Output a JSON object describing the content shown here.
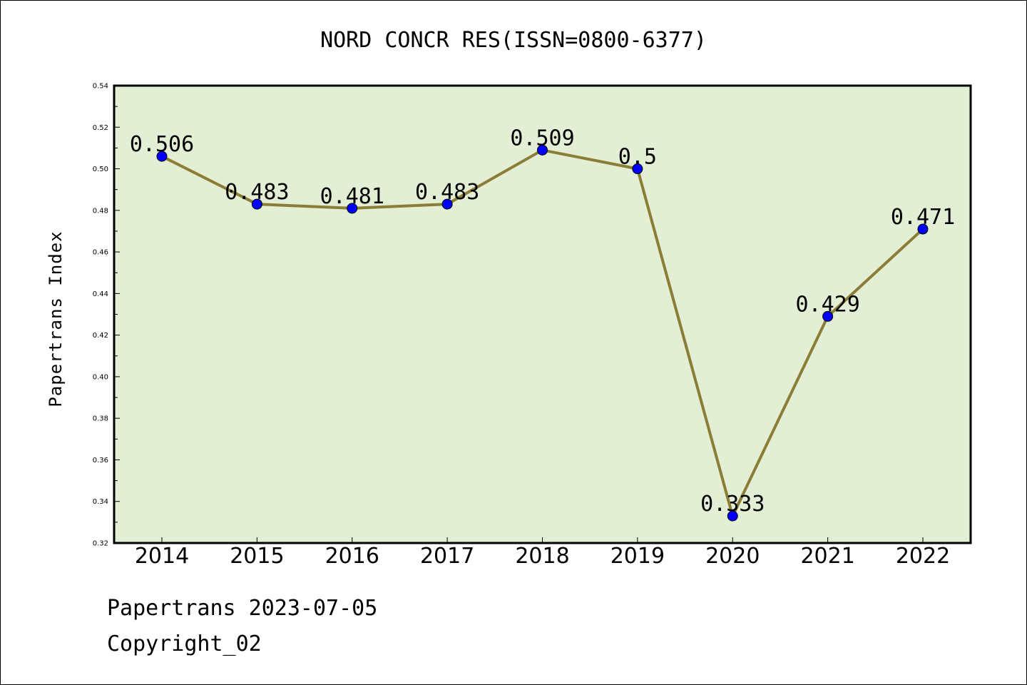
{
  "chart_data": {
    "type": "line",
    "title": "NORD CONCR RES(ISSN=0800-6377)",
    "xlabel": "",
    "ylabel": "Papertrans Index",
    "categories": [
      "2014",
      "2015",
      "2016",
      "2017",
      "2018",
      "2019",
      "2020",
      "2021",
      "2022"
    ],
    "series": [
      {
        "values": [
          0.506,
          0.483,
          0.481,
          0.483,
          0.509,
          0.5,
          0.333,
          0.429,
          0.471
        ]
      }
    ],
    "data_labels": [
      "0.506",
      "0.483",
      "0.481",
      "0.483",
      "0.509",
      "0.5",
      "0.333",
      "0.429",
      "0.471"
    ],
    "ylim": [
      0.32,
      0.54
    ],
    "yticks": [
      "0.32",
      "0.34",
      "0.36",
      "0.38",
      "0.40",
      "0.42",
      "0.44",
      "0.46",
      "0.48",
      "0.50",
      "0.52",
      "0.54"
    ],
    "grid": false,
    "legend": "none",
    "colors": {
      "plot_background": "#e2efd5",
      "line": "#8b7d35",
      "marker": "#0000ff"
    }
  },
  "footer": {
    "line1": "Papertrans 2023-07-05",
    "line2": "Copyright_02"
  }
}
